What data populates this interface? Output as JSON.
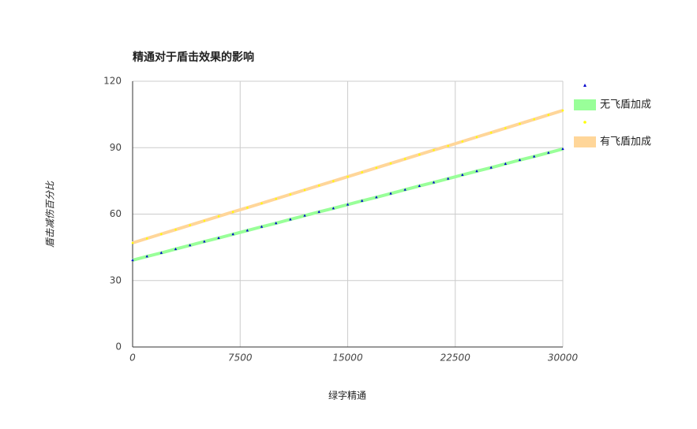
{
  "chart_data": {
    "type": "scatter",
    "title": "精通对于盾击效果的影响",
    "x_label": "绿字精通",
    "y_label": "盾击减伤百分比",
    "x": [
      0,
      1000,
      2000,
      3000,
      4000,
      5000,
      6000,
      7000,
      8000,
      9000,
      10000,
      11000,
      12000,
      13000,
      14000,
      15000,
      16000,
      17000,
      18000,
      19000,
      20000,
      21000,
      22000,
      23000,
      24000,
      25000,
      26000,
      27000,
      28000,
      29000,
      30000
    ],
    "series": [
      {
        "name": "无飞盾加成",
        "point_color": "#0000cc",
        "line_color": "#99ff99",
        "values": [
          39.2,
          40.9,
          42.5,
          44.2,
          45.9,
          47.6,
          49.2,
          50.9,
          52.6,
          54.3,
          55.9,
          57.6,
          59.3,
          61.0,
          62.6,
          64.3,
          66.0,
          67.6,
          69.3,
          71.0,
          72.7,
          74.3,
          76.0,
          77.7,
          79.4,
          81.0,
          82.7,
          84.4,
          86.0,
          87.7,
          89.4
        ]
      },
      {
        "name": "有飞盾加成",
        "point_color": "#ffff00",
        "line_color": "#ffd699",
        "values": [
          47.0,
          49.0,
          51.0,
          53.0,
          55.0,
          57.0,
          59.0,
          61.0,
          62.9,
          64.9,
          66.9,
          68.9,
          70.9,
          72.9,
          74.9,
          76.9,
          78.9,
          80.9,
          82.9,
          84.9,
          86.9,
          88.9,
          90.8,
          92.8,
          94.8,
          96.8,
          98.8,
          100.8,
          102.8,
          104.8,
          106.8
        ]
      }
    ],
    "xlim": [
      0,
      30000
    ],
    "xticks": [
      0,
      7500,
      15000,
      22500,
      30000
    ],
    "ylim": [
      0,
      120
    ],
    "yticks": [
      0,
      30,
      60,
      90,
      120
    ],
    "grid": true
  }
}
